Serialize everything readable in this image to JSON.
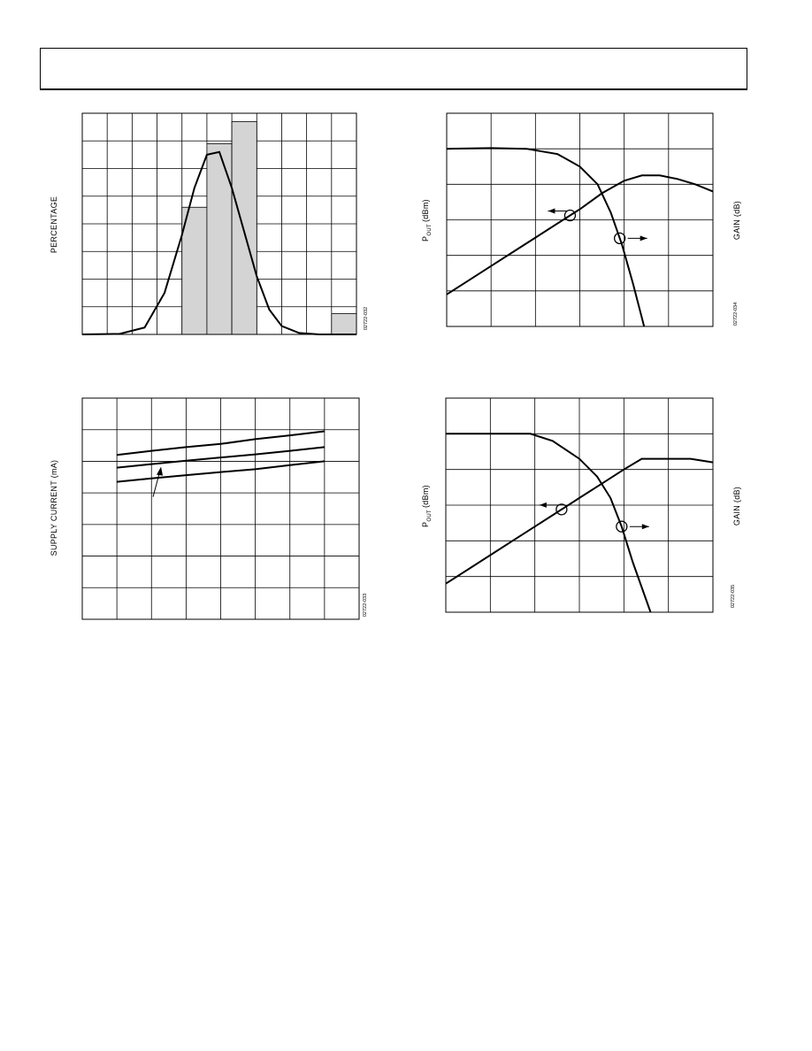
{
  "page": {
    "header_text": ""
  },
  "chart_data": [
    {
      "id": "histogram",
      "type": "bar",
      "ylabel": "PERCENTAGE",
      "figure_id": "02722-032",
      "x_bins": 11,
      "xlim": [
        0,
        11
      ],
      "ylim": [
        0,
        8
      ],
      "grid": true,
      "bars": [
        {
          "bin": 4,
          "value": 4.6
        },
        {
          "bin": 5,
          "value": 6.9
        },
        {
          "bin": 6,
          "value": 7.7
        },
        {
          "bin": 10,
          "value": 0.75
        }
      ],
      "curve": [
        [
          0,
          0
        ],
        [
          1.5,
          0.02
        ],
        [
          2.5,
          0.25
        ],
        [
          3.3,
          1.5
        ],
        [
          4,
          3.6
        ],
        [
          4.5,
          5.3
        ],
        [
          5,
          6.5
        ],
        [
          5.5,
          6.6
        ],
        [
          6,
          5.3
        ],
        [
          6.5,
          3.7
        ],
        [
          7,
          2.1
        ],
        [
          7.5,
          0.9
        ],
        [
          8,
          0.3
        ],
        [
          8.7,
          0.05
        ],
        [
          9.5,
          0
        ],
        [
          11,
          0
        ]
      ]
    },
    {
      "id": "pout-gain-1",
      "type": "line",
      "ylabel_left": "P",
      "ylabel_left_sub": "OUT",
      "ylabel_left_unit": "(dBm)",
      "ylabel_right": "GAIN (dB)",
      "figure_id": "02722-034",
      "xlim": [
        0,
        6
      ],
      "ylim": [
        0,
        6
      ],
      "grid": true,
      "series": [
        {
          "axis": "left",
          "points": [
            [
              0,
              0.9
            ],
            [
              0.5,
              1.3
            ],
            [
              1,
              1.7
            ],
            [
              1.5,
              2.1
            ],
            [
              2,
              2.5
            ],
            [
              2.5,
              2.9
            ],
            [
              3,
              3.3
            ],
            [
              3.5,
              3.75
            ],
            [
              4,
              4.1
            ],
            [
              4.4,
              4.25
            ],
            [
              4.8,
              4.25
            ],
            [
              5.2,
              4.15
            ],
            [
              5.6,
              4.0
            ],
            [
              6,
              3.8
            ]
          ],
          "marker_x": 2.78
        },
        {
          "axis": "right",
          "points": [
            [
              0,
              5.0
            ],
            [
              1,
              5.02
            ],
            [
              1.8,
              5.0
            ],
            [
              2.5,
              4.85
            ],
            [
              3,
              4.5
            ],
            [
              3.4,
              4.0
            ],
            [
              3.7,
              3.2
            ],
            [
              3.95,
              2.3
            ],
            [
              4.2,
              1.2
            ],
            [
              4.45,
              0
            ]
          ],
          "marker_x": 3.9
        }
      ]
    },
    {
      "id": "supply-current",
      "type": "line",
      "ylabel": "SUPPLY CURRENT (mA)",
      "figure_id": "02722-033",
      "xlim": [
        0,
        8
      ],
      "ylim": [
        0,
        7
      ],
      "grid": true,
      "series": [
        {
          "points": [
            [
              1,
              5.2
            ],
            [
              2,
              5.33
            ],
            [
              3,
              5.45
            ],
            [
              4,
              5.55
            ],
            [
              5,
              5.7
            ],
            [
              6,
              5.82
            ],
            [
              7,
              5.95
            ]
          ]
        },
        {
          "points": [
            [
              1,
              4.8
            ],
            [
              2,
              4.91
            ],
            [
              3,
              5.02
            ],
            [
              4,
              5.12
            ],
            [
              5,
              5.22
            ],
            [
              6,
              5.33
            ],
            [
              7,
              5.45
            ]
          ]
        },
        {
          "points": [
            [
              1,
              4.35
            ],
            [
              2,
              4.46
            ],
            [
              3,
              4.56
            ],
            [
              4,
              4.66
            ],
            [
              5,
              4.75
            ],
            [
              6,
              4.88
            ],
            [
              7,
              5.0
            ]
          ]
        }
      ]
    },
    {
      "id": "pout-gain-2",
      "type": "line",
      "ylabel_left": "P",
      "ylabel_left_sub": "OUT",
      "ylabel_left_unit": "(dBm)",
      "ylabel_right": "GAIN (dB)",
      "figure_id": "02722-035",
      "xlim": [
        0,
        6
      ],
      "ylim": [
        0,
        6
      ],
      "grid": true,
      "series": [
        {
          "axis": "left",
          "points": [
            [
              0,
              0.8
            ],
            [
              0.5,
              1.2
            ],
            [
              1,
              1.6
            ],
            [
              1.5,
              2.0
            ],
            [
              2,
              2.4
            ],
            [
              2.5,
              2.8
            ],
            [
              3,
              3.2
            ],
            [
              3.5,
              3.6
            ],
            [
              4,
              4.0
            ],
            [
              4.4,
              4.3
            ],
            [
              5,
              4.3
            ],
            [
              5.5,
              4.3
            ],
            [
              6,
              4.2
            ]
          ],
          "marker_x": 2.6
        },
        {
          "axis": "right",
          "points": [
            [
              0,
              5.0
            ],
            [
              1,
              5.0
            ],
            [
              1.9,
              5.0
            ],
            [
              2.4,
              4.8
            ],
            [
              3,
              4.3
            ],
            [
              3.4,
              3.8
            ],
            [
              3.7,
              3.2
            ],
            [
              3.95,
              2.4
            ],
            [
              4.2,
              1.4
            ],
            [
              4.6,
              0
            ]
          ],
          "marker_x": 3.95
        }
      ]
    }
  ]
}
